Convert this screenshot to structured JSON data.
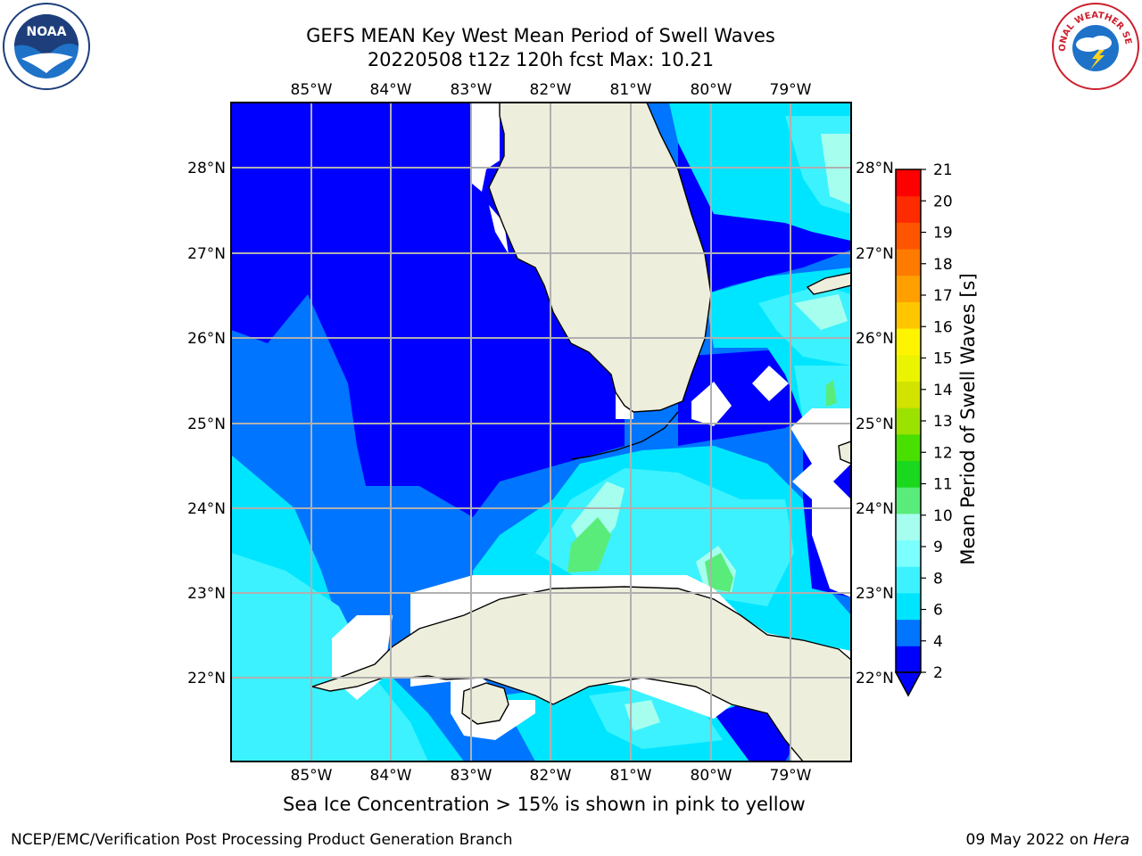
{
  "title": {
    "line1": "GEFS MEAN Key West Mean Period of Swell Waves",
    "line2": "20220508 t12z 120h fcst   Max: 10.21"
  },
  "logos": {
    "left": "NOAA",
    "right_text": "NATIONAL WEATHER SERVICE"
  },
  "axes": {
    "lon_labels": [
      "85°W",
      "84°W",
      "83°W",
      "82°W",
      "81°W",
      "80°W",
      "79°W"
    ],
    "lat_labels": [
      "28°N",
      "27°N",
      "26°N",
      "25°N",
      "24°N",
      "23°N",
      "22°N"
    ]
  },
  "colorbar": {
    "title": "Mean Period of Swell Waves [s]",
    "ticks": [
      "21",
      "20",
      "19",
      "18",
      "17",
      "16",
      "15",
      "14",
      "13",
      "12",
      "11",
      "10",
      "9",
      "8",
      "6",
      "4",
      "2"
    ],
    "colors_bottom_to_top": [
      "#0000ff",
      "#0075ff",
      "#00e5ff",
      "#3cf2ff",
      "#7cffff",
      "#a6ffee",
      "#59ec7a",
      "#19d81e",
      "#49df00",
      "#9ce200",
      "#d2e300",
      "#eaf400",
      "#fff400",
      "#ffc600",
      "#ffa000",
      "#ff7b00",
      "#ff5500",
      "#ff2b00",
      "#ff0000"
    ],
    "extend_color": "#0000ff"
  },
  "palette": {
    "land": "#eeeedd",
    "deep_blue": "#0000ff",
    "mid_blue": "#0075ff",
    "cyan": "#00e5ff",
    "light_cyan": "#3cf2ff",
    "pale_cyan": "#a6ffee",
    "green": "#59ec7a",
    "grid": "#b0b0b0"
  },
  "ice_note": "Sea Ice Concentration > 15% is shown in pink to yellow",
  "footer": {
    "left": "NCEP/EMC/Verification Post Processing Product Generation Branch",
    "right_prefix": "09 May 2022 on ",
    "right_host": "Hera"
  }
}
